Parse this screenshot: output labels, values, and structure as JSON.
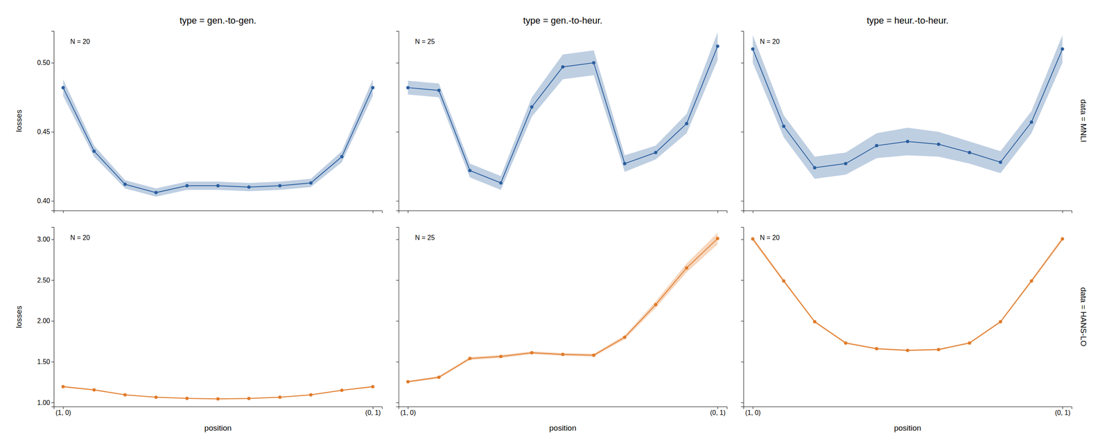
{
  "chart_data": [
    {
      "type": "line",
      "title": "type = gen.-to-gen.",
      "ylabel": "losses",
      "x": [
        0,
        1,
        2,
        3,
        4,
        5,
        6,
        7,
        8,
        9,
        10
      ],
      "series": [
        {
          "color": "#2b5f9e",
          "marker": "circle",
          "values": [
            0.482,
            0.436,
            0.412,
            0.406,
            0.411,
            0.411,
            0.41,
            0.411,
            0.413,
            0.432,
            0.482
          ],
          "y_err": [
            0.006,
            0.004,
            0.003,
            0.003,
            0.003,
            0.003,
            0.003,
            0.003,
            0.003,
            0.004,
            0.006
          ]
        }
      ],
      "xlim": [
        -0.3,
        10.3
      ],
      "xticks": [
        0,
        10
      ],
      "ylim": [
        0.393,
        0.523
      ],
      "yticks": [
        {
          "value": 0.4,
          "label": "0.40"
        },
        0.45,
        {
          "value": 0.5,
          "label": "0.50"
        }
      ],
      "annotations": [
        "N = 20"
      ],
      "tick_labels": "y"
    },
    {
      "type": "line",
      "title": "type = gen.-to-heur.",
      "x": [
        0,
        1,
        2,
        3,
        4,
        5,
        6,
        7,
        8,
        9,
        10
      ],
      "series": [
        {
          "color": "#2b5f9e",
          "marker": "circle",
          "values": [
            0.482,
            0.48,
            0.422,
            0.413,
            0.468,
            0.497,
            0.5,
            0.427,
            0.435,
            0.456,
            0.512
          ],
          "y_err": [
            0.005,
            0.005,
            0.005,
            0.005,
            0.007,
            0.009,
            0.009,
            0.006,
            0.005,
            0.007,
            0.01
          ]
        }
      ],
      "xlim": [
        -0.3,
        10.3
      ],
      "xticks": [
        0,
        10
      ],
      "ylim": [
        0.393,
        0.523
      ],
      "yticks": [
        0.4,
        0.45,
        0.5
      ],
      "annotations": [
        "N = 25"
      ],
      "tick_labels": false
    },
    {
      "type": "line",
      "title": "type = heur.-to-heur.",
      "x": [
        0,
        1,
        2,
        3,
        4,
        5,
        6,
        7,
        8,
        9,
        10
      ],
      "series": [
        {
          "color": "#2b5f9e",
          "marker": "circle",
          "values": [
            0.51,
            0.454,
            0.424,
            0.427,
            0.44,
            0.443,
            0.441,
            0.435,
            0.428,
            0.457,
            0.51
          ],
          "y_err": [
            0.01,
            0.008,
            0.008,
            0.008,
            0.009,
            0.01,
            0.009,
            0.008,
            0.008,
            0.008,
            0.01
          ]
        }
      ],
      "xlim": [
        -0.3,
        10.3
      ],
      "xticks": [
        0,
        10
      ],
      "ylim": [
        0.393,
        0.523
      ],
      "yticks": [
        0.4,
        0.45,
        0.5
      ],
      "annotations": [
        "N = 20",
        "data = MNLI"
      ],
      "tick_labels": false
    },
    {
      "type": "line",
      "xlabel": "position",
      "ylabel": "losses",
      "x": [
        0,
        1,
        2,
        3,
        4,
        5,
        6,
        7,
        8,
        9,
        10
      ],
      "series": [
        {
          "color": "#e07b2a",
          "marker": "circle",
          "values": [
            1.195,
            1.155,
            1.095,
            1.065,
            1.052,
            1.045,
            1.05,
            1.065,
            1.095,
            1.15,
            1.195
          ],
          "y_err": [
            0.01,
            0.008,
            0.007,
            0.006,
            0.006,
            0.006,
            0.006,
            0.006,
            0.007,
            0.008,
            0.01
          ]
        }
      ],
      "xlim": [
        -0.3,
        10.3
      ],
      "xticks": [
        {
          "value": 0,
          "label": "(1, 0)"
        },
        {
          "value": 10,
          "label": "(0, 1)"
        }
      ],
      "ylim": [
        0.95,
        3.15
      ],
      "yticks": [
        {
          "value": 1,
          "label": "1.00"
        },
        {
          "value": 1.5,
          "label": "1.50"
        },
        {
          "value": 2,
          "label": "2.00"
        },
        {
          "value": 2.5,
          "label": "2.50"
        },
        {
          "value": 3,
          "label": "3.00"
        }
      ],
      "annotations": [
        "N = 20"
      ]
    },
    {
      "type": "line",
      "xlabel": "position",
      "x": [
        0,
        1,
        2,
        3,
        4,
        5,
        6,
        7,
        8,
        9,
        10
      ],
      "series": [
        {
          "color": "#e07b2a",
          "marker": "circle",
          "values": [
            1.255,
            1.31,
            1.54,
            1.565,
            1.61,
            1.59,
            1.58,
            1.8,
            2.2,
            2.65,
            3.01
          ],
          "y_err": [
            0.012,
            0.015,
            0.018,
            0.018,
            0.018,
            0.018,
            0.018,
            0.025,
            0.04,
            0.055,
            0.07
          ]
        }
      ],
      "xlim": [
        -0.3,
        10.3
      ],
      "xticks": [
        {
          "value": 0,
          "label": "(1, 0)"
        },
        {
          "value": 10,
          "label": "(0, 1)"
        }
      ],
      "ylim": [
        0.95,
        3.15
      ],
      "yticks": [
        1,
        1.5,
        2,
        2.5,
        3
      ],
      "annotations": [
        "N = 25"
      ],
      "tick_labels": "x"
    },
    {
      "type": "line",
      "xlabel": "position",
      "x": [
        0,
        1,
        2,
        3,
        4,
        5,
        6,
        7,
        8,
        9,
        10
      ],
      "series": [
        {
          "color": "#e07b2a",
          "marker": "circle",
          "values": [
            3.005,
            2.49,
            1.99,
            1.73,
            1.66,
            1.64,
            1.65,
            1.73,
            1.99,
            2.49,
            3.005
          ],
          "y_err": [
            0.025,
            0.02,
            0.015,
            0.012,
            0.01,
            0.01,
            0.01,
            0.012,
            0.015,
            0.02,
            0.025
          ]
        }
      ],
      "xlim": [
        -0.3,
        10.3
      ],
      "xticks": [
        {
          "value": 0,
          "label": "(1, 0)"
        },
        {
          "value": 10,
          "label": "(0, 1)"
        }
      ],
      "ylim": [
        0.95,
        3.15
      ],
      "yticks": [
        1,
        1.5,
        2,
        2.5,
        3
      ],
      "annotations": [
        "N = 20",
        "data = HANS-LO"
      ],
      "tick_labels": "x"
    }
  ]
}
